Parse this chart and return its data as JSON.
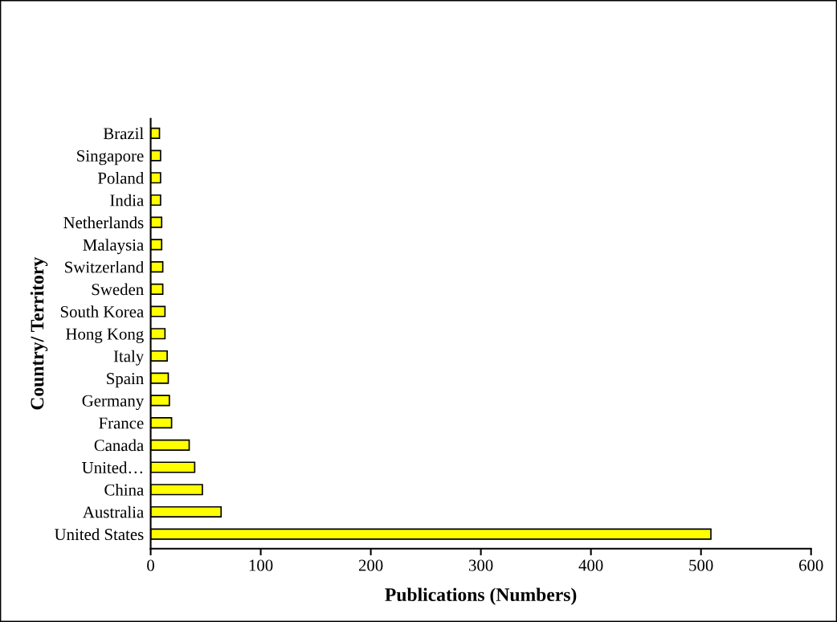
{
  "chart_data": {
    "type": "bar",
    "orientation": "horizontal",
    "xlabel": "Publications (Numbers)",
    "ylabel": "Country/ Territory",
    "categories": [
      "Brazil",
      "Singapore",
      "Poland",
      "India",
      "Netherlands",
      "Malaysia",
      "Switzerland",
      "Sweden",
      "South Korea",
      "Hong Kong",
      "Italy",
      "Spain",
      "Germany",
      "France",
      "Canada",
      "United…",
      "China",
      "Australia",
      "United States"
    ],
    "values": [
      8,
      9,
      9,
      9,
      10,
      10,
      11,
      11,
      13,
      13,
      15,
      16,
      17,
      19,
      35,
      40,
      47,
      64,
      509
    ],
    "color": "#ffff00",
    "xlim": [
      0,
      600
    ],
    "xticks": [
      0,
      100,
      200,
      300,
      400,
      500,
      600
    ],
    "grid": false,
    "legend": false
  }
}
